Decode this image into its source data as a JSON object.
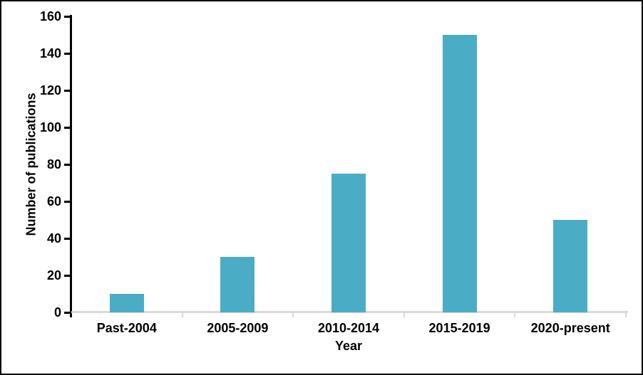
{
  "chart_data": {
    "type": "bar",
    "title": "",
    "categories": [
      "Past-2004",
      "2005-2009",
      "2010-2014",
      "2015-2019",
      "2020-present"
    ],
    "values": [
      10,
      30,
      75,
      150,
      50
    ],
    "xlabel": "Year",
    "ylabel": "Number of publications",
    "ylim": [
      0,
      160
    ],
    "yticks": [
      0,
      20,
      40,
      60,
      80,
      100,
      120,
      140,
      160
    ],
    "grid": false,
    "legend": false,
    "colors": {
      "bar_fill": "#4BACC6",
      "y_axis_line": "#000000",
      "x_axis_line": "#D9D9D9",
      "text": "#000000",
      "background": "#FFFFFF",
      "frame_border": "#000000"
    }
  }
}
